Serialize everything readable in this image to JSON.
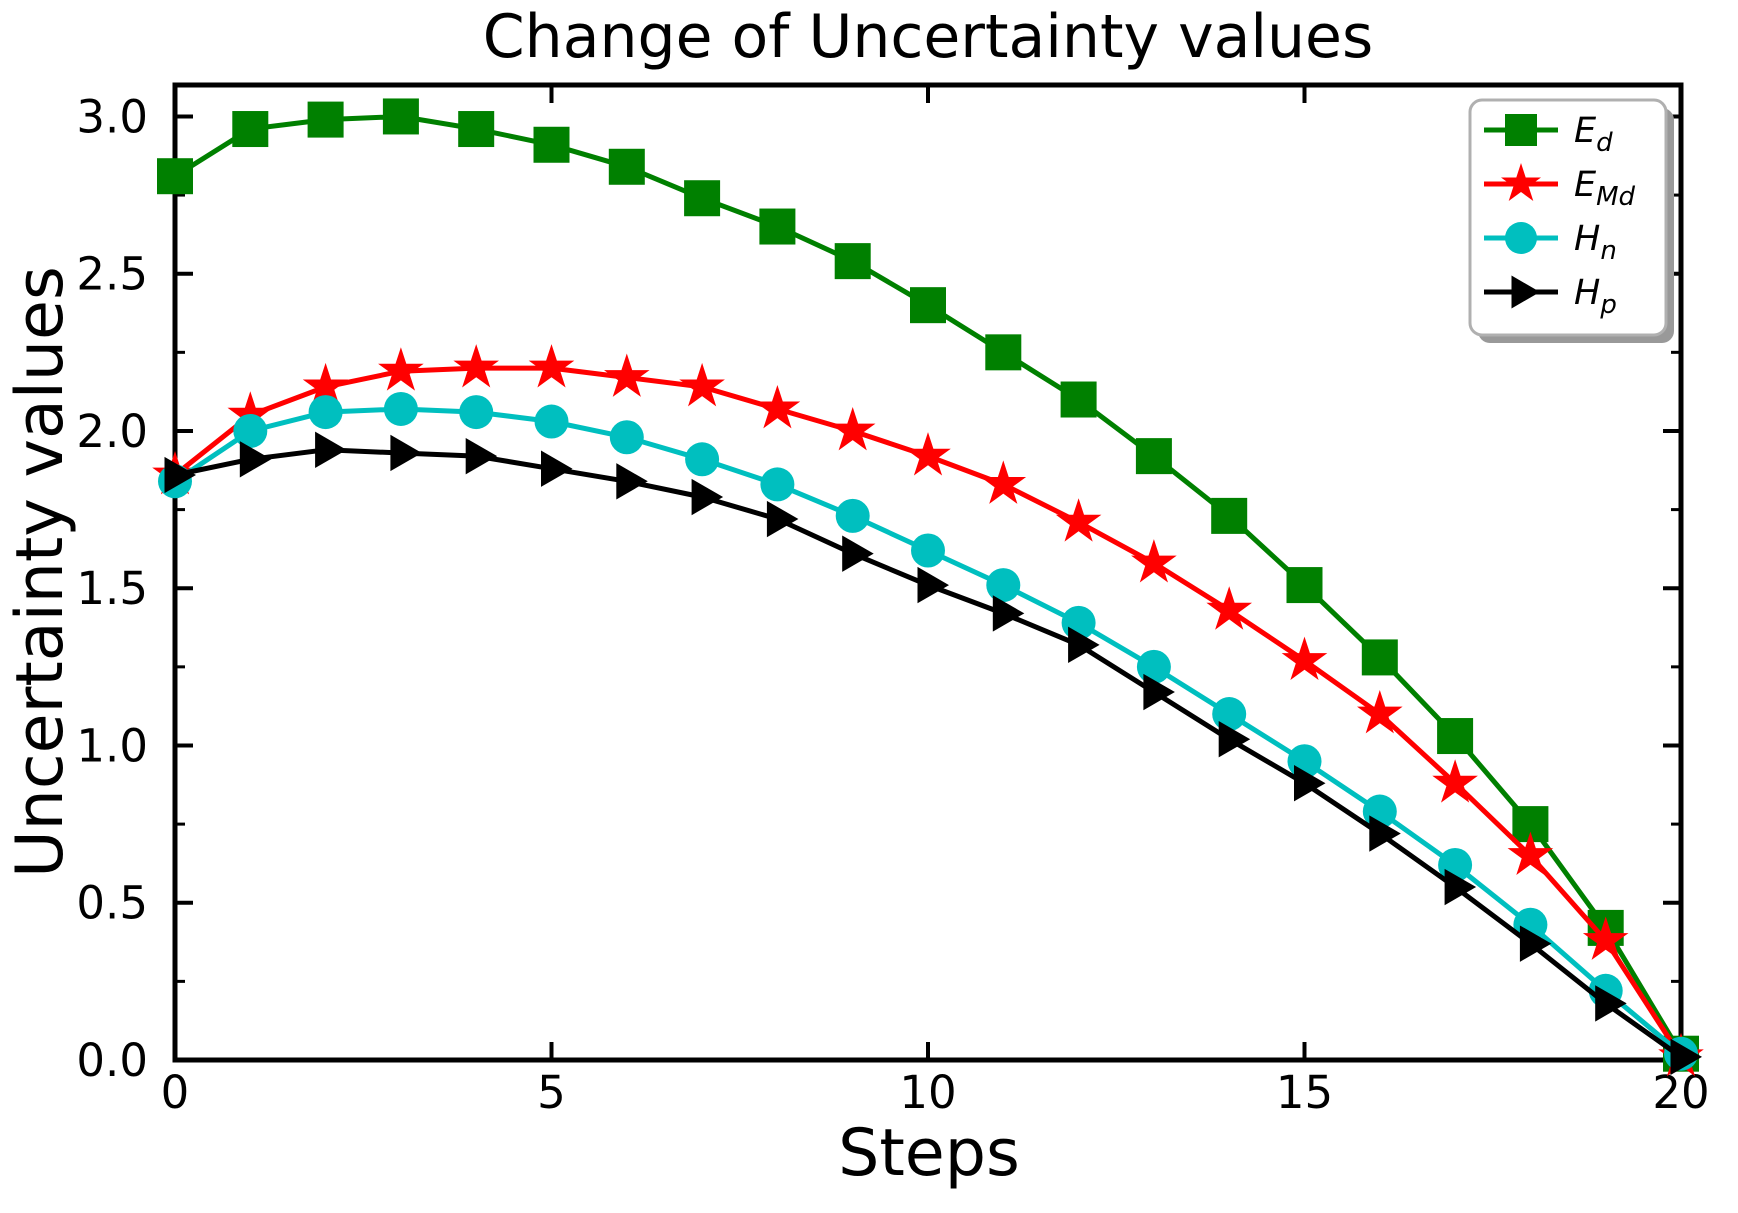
{
  "chart_data": {
    "type": "line",
    "title": "Change of Uncertainty values",
    "xlabel": "Steps",
    "ylabel": "Uncertainty values",
    "xlim": [
      0,
      20
    ],
    "ylim": [
      0,
      3.1
    ],
    "grid": false,
    "legend_position": "upper right",
    "xticks": {
      "values": [
        0,
        5,
        10,
        15,
        20
      ],
      "labels": [
        "0",
        "5",
        "10",
        "15",
        "20"
      ]
    },
    "yticks": {
      "values": [
        0.0,
        0.5,
        1.0,
        1.5,
        2.0,
        2.5,
        3.0
      ],
      "labels": [
        "0.0",
        "0.5",
        "1.0",
        "1.5",
        "2.0",
        "2.5",
        "3.0"
      ]
    },
    "y_minor_tick_step": 0.25,
    "x": [
      0,
      1,
      2,
      3,
      4,
      5,
      6,
      7,
      8,
      9,
      10,
      11,
      12,
      13,
      14,
      15,
      16,
      17,
      18,
      19,
      20
    ],
    "series": [
      {
        "name": "E_d",
        "label_main": "E",
        "label_sub": "d",
        "marker": "square",
        "color": "#008000",
        "values": [
          2.81,
          2.96,
          2.99,
          3.0,
          2.96,
          2.91,
          2.84,
          2.74,
          2.65,
          2.54,
          2.4,
          2.25,
          2.1,
          1.92,
          1.73,
          1.51,
          1.28,
          1.03,
          0.75,
          0.42,
          0.02
        ]
      },
      {
        "name": "E_Md",
        "label_main": "E",
        "label_sub": "Md",
        "marker": "star",
        "color": "#ff0000",
        "values": [
          1.86,
          2.05,
          2.14,
          2.19,
          2.2,
          2.2,
          2.17,
          2.14,
          2.07,
          2.0,
          1.92,
          1.83,
          1.71,
          1.58,
          1.43,
          1.27,
          1.1,
          0.88,
          0.65,
          0.38,
          0.01
        ]
      },
      {
        "name": "H_n",
        "label_main": "H",
        "label_sub": "n",
        "marker": "circle",
        "color": "#00bfbf",
        "values": [
          1.84,
          2.0,
          2.06,
          2.07,
          2.06,
          2.03,
          1.98,
          1.91,
          1.83,
          1.73,
          1.62,
          1.51,
          1.39,
          1.25,
          1.1,
          0.95,
          0.79,
          0.62,
          0.43,
          0.22,
          0.02
        ]
      },
      {
        "name": "H_p",
        "label_main": "H",
        "label_sub": "p",
        "marker": "triangle-right",
        "color": "#000000",
        "values": [
          1.86,
          1.91,
          1.94,
          1.93,
          1.92,
          1.88,
          1.84,
          1.79,
          1.72,
          1.61,
          1.51,
          1.42,
          1.32,
          1.17,
          1.02,
          0.88,
          0.72,
          0.55,
          0.37,
          0.18,
          0.01
        ]
      }
    ],
    "colors": {
      "axes": "#000000",
      "background": "#ffffff",
      "legend_border": "#b0b0b0",
      "legend_shadow": "#999999"
    }
  }
}
